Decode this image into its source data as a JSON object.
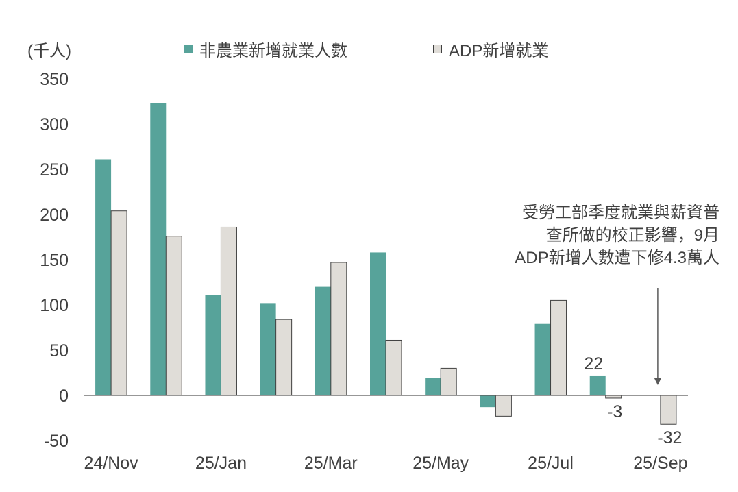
{
  "unit_label": "(千人)",
  "legend": {
    "series1": "非農業新增就業人數",
    "series2": "ADP新增就業"
  },
  "colors": {
    "series1": "#57A39A",
    "series2": "#E0DDD8",
    "series2_border": "#404040",
    "axis": "#595959",
    "text": "#404040"
  },
  "annotation": {
    "lines": [
      "受勞工部季度就業與薪資普",
      "查所做的校正影響，9月",
      "ADP新增人數遭下修4.3萬人"
    ]
  },
  "chart_data": {
    "type": "bar",
    "categories": [
      "24/Nov",
      "24/Dec",
      "25/Jan",
      "25/Feb",
      "25/Mar",
      "25/Apr",
      "25/May",
      "25/Jun",
      "25/Jul",
      "25/Aug",
      "25/Sep"
    ],
    "x_tick_labels": [
      "24/Nov",
      "25/Jan",
      "25/Mar",
      "25/May",
      "25/Jul",
      "25/Sep"
    ],
    "y_ticks": [
      350,
      300,
      250,
      200,
      150,
      100,
      50,
      0,
      -50
    ],
    "ylim": [
      -50,
      350
    ],
    "series": [
      {
        "name": "非農業新增就業人數",
        "values": [
          261,
          323,
          111,
          102,
          120,
          158,
          19,
          -13,
          79,
          22,
          null
        ]
      },
      {
        "name": "ADP新增就業",
        "values": [
          204,
          176,
          186,
          84,
          147,
          61,
          30,
          -23,
          105,
          -3,
          -32
        ]
      }
    ],
    "data_labels": [
      {
        "series": 0,
        "index": 9,
        "text": "22"
      },
      {
        "series": 1,
        "index": 9,
        "text": "-3"
      },
      {
        "series": 1,
        "index": 10,
        "text": "-32"
      }
    ],
    "grid": false
  }
}
